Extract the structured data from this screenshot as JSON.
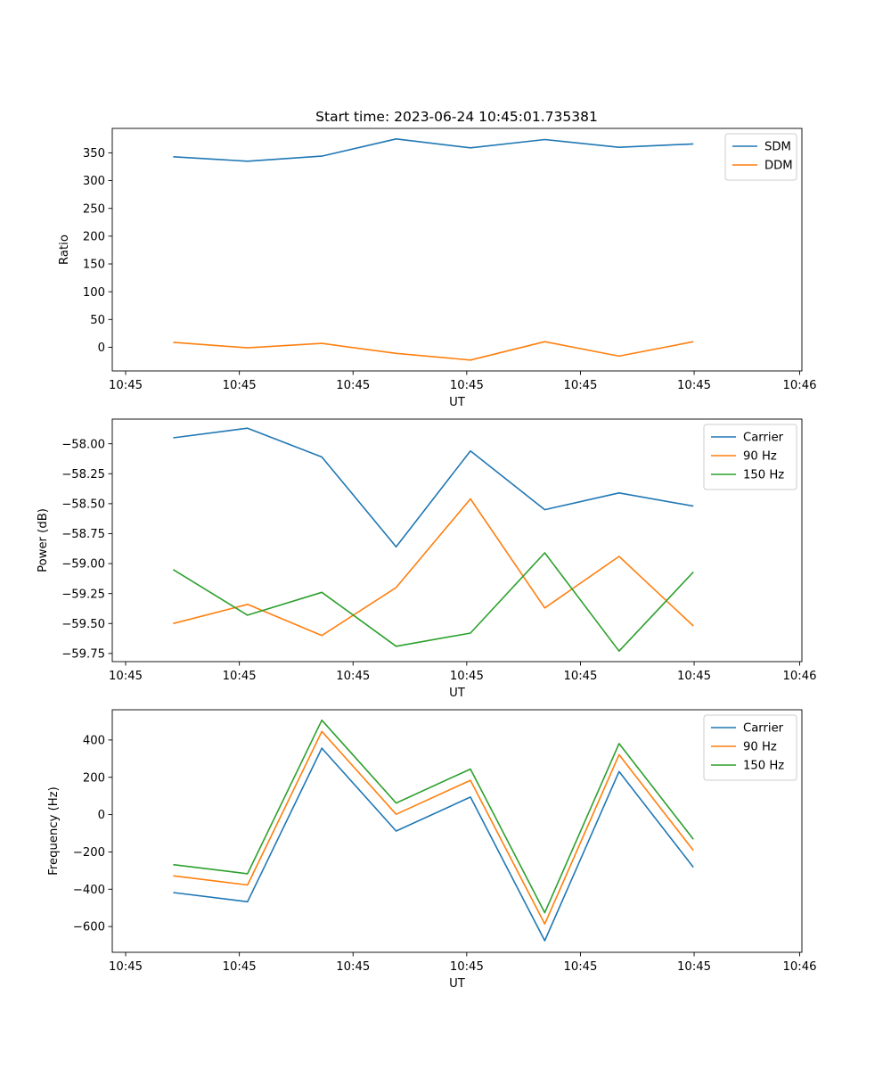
{
  "figure_title": "Start time: 2023-06-24 10:45:01.735381",
  "chart_data": [
    {
      "type": "line",
      "title": "Start time: 2023-06-24 10:45:01.735381",
      "xlabel": "UT",
      "ylabel": "Ratio",
      "x": [
        1,
        2,
        3,
        4,
        5,
        6,
        7,
        8
      ],
      "xlim": [
        0.18,
        9.46
      ],
      "xticks": [
        0.36,
        1.89,
        3.42,
        4.95,
        6.48,
        8.01,
        9.43
      ],
      "xtick_labels": [
        "10:45",
        "10:45",
        "10:45",
        "10:45",
        "10:45",
        "10:45",
        "10:46"
      ],
      "ylim": [
        -42.6,
        394
      ],
      "yticks": [
        0,
        50,
        100,
        150,
        200,
        250,
        300,
        350
      ],
      "ytick_labels": [
        "0",
        "50",
        "100",
        "150",
        "200",
        "250",
        "300",
        "350"
      ],
      "legend_position": "upper-right",
      "grid": false,
      "series": [
        {
          "name": "SDM",
          "color": "#1f77b4",
          "values": [
            343,
            335,
            344,
            375,
            359,
            374,
            360,
            366
          ]
        },
        {
          "name": "DDM",
          "color": "#ff7f0e",
          "values": [
            9,
            -1,
            7,
            -11,
            -23,
            10,
            -16,
            10
          ]
        }
      ]
    },
    {
      "type": "line",
      "xlabel": "UT",
      "ylabel": "Power (dB)",
      "x": [
        1,
        2,
        3,
        4,
        5,
        6,
        7,
        8
      ],
      "xlim": [
        0.18,
        9.46
      ],
      "xticks": [
        0.36,
        1.89,
        3.42,
        4.95,
        6.48,
        8.01,
        9.43
      ],
      "xtick_labels": [
        "10:45",
        "10:45",
        "10:45",
        "10:45",
        "10:45",
        "10:45",
        "10:46"
      ],
      "ylim": [
        -59.818,
        -57.794
      ],
      "yticks": [
        -58.0,
        -58.25,
        -58.5,
        -58.75,
        -59.0,
        -59.25,
        -59.5,
        -59.75
      ],
      "ytick_labels": [
        "−58.00",
        "−58.25",
        "−58.50",
        "−58.75",
        "−59.00",
        "−59.25",
        "−59.50",
        "−59.75"
      ],
      "legend_position": "upper-right",
      "grid": false,
      "series": [
        {
          "name": "Carrier",
          "color": "#1f77b4",
          "values": [
            -57.95,
            -57.87,
            -58.11,
            -58.86,
            -58.06,
            -58.55,
            -58.41,
            -58.52
          ]
        },
        {
          "name": "90 Hz",
          "color": "#ff7f0e",
          "values": [
            -59.5,
            -59.34,
            -59.6,
            -59.2,
            -58.46,
            -59.37,
            -58.94,
            -59.52
          ]
        },
        {
          "name": "150 Hz",
          "color": "#2ca02c",
          "values": [
            -59.05,
            -59.43,
            -59.24,
            -59.69,
            -59.58,
            -58.91,
            -59.73,
            -59.07
          ]
        }
      ]
    },
    {
      "type": "line",
      "xlabel": "UT",
      "ylabel": "Frequency (Hz)",
      "x": [
        1,
        2,
        3,
        4,
        5,
        6,
        7,
        8
      ],
      "xlim": [
        0.18,
        9.46
      ],
      "xticks": [
        0.36,
        1.89,
        3.42,
        4.95,
        6.48,
        8.01,
        9.43
      ],
      "xtick_labels": [
        "10:45",
        "10:45",
        "10:45",
        "10:45",
        "10:45",
        "10:45",
        "10:46"
      ],
      "ylim": [
        -738,
        562
      ],
      "yticks": [
        -600,
        -400,
        -200,
        0,
        200,
        400
      ],
      "ytick_labels": [
        "−600",
        "−400",
        "−200",
        "0",
        "200",
        "400"
      ],
      "legend_position": "upper-right",
      "grid": false,
      "series": [
        {
          "name": "Carrier",
          "color": "#1f77b4",
          "values": [
            -418,
            -467,
            356,
            -88,
            94,
            -676,
            231,
            -282
          ]
        },
        {
          "name": "90 Hz",
          "color": "#ff7f0e",
          "values": [
            -328,
            -377,
            446,
            2,
            184,
            -586,
            321,
            -192
          ]
        },
        {
          "name": "150 Hz",
          "color": "#2ca02c",
          "values": [
            -268,
            -317,
            506,
            62,
            244,
            -526,
            381,
            -132
          ]
        }
      ]
    }
  ]
}
